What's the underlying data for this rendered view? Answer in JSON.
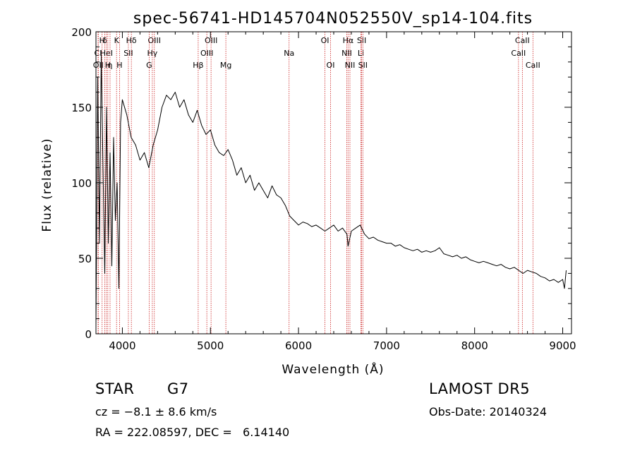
{
  "chart_data": {
    "type": "line",
    "title": "spec-56741-HD145704N052550V_sp14-104.fits",
    "xlabel": "Wavelength (Å)",
    "ylabel": "Flux (relative)",
    "xlim": [
      3700,
      9100
    ],
    "ylim": [
      0,
      200
    ],
    "xticks": [
      4000,
      5000,
      6000,
      7000,
      8000,
      9000
    ],
    "yticks": [
      0,
      50,
      100,
      150,
      200
    ],
    "line_color": "#000000",
    "marker_color": "#cc2222",
    "series": [
      {
        "x": [
          3700,
          3720,
          3740,
          3760,
          3780,
          3800,
          3820,
          3840,
          3860,
          3880,
          3900,
          3920,
          3940,
          3960,
          3980,
          4000,
          4050,
          4100,
          4150,
          4200,
          4250,
          4300,
          4350,
          4400,
          4450,
          4500,
          4550,
          4600,
          4650,
          4700,
          4750,
          4800,
          4850,
          4900,
          4950,
          5000,
          5050,
          5100,
          5150,
          5200,
          5250,
          5300,
          5350,
          5400,
          5450,
          5500,
          5550,
          5600,
          5650,
          5700,
          5750,
          5800,
          5850,
          5900,
          5950,
          6000,
          6050,
          6100,
          6150,
          6200,
          6250,
          6300,
          6350,
          6400,
          6450,
          6500,
          6550,
          6563,
          6600,
          6650,
          6700,
          6750,
          6800,
          6850,
          6900,
          6950,
          7000,
          7050,
          7100,
          7150,
          7200,
          7250,
          7300,
          7350,
          7400,
          7450,
          7500,
          7550,
          7600,
          7650,
          7700,
          7750,
          7800,
          7850,
          7900,
          7950,
          8000,
          8050,
          8100,
          8150,
          8200,
          8250,
          8300,
          8350,
          8400,
          8450,
          8500,
          8550,
          8600,
          8650,
          8700,
          8750,
          8800,
          8850,
          8900,
          8950,
          9000,
          9020,
          9040
        ],
        "y": [
          5,
          170,
          60,
          185,
          110,
          40,
          150,
          60,
          120,
          45,
          130,
          75,
          100,
          30,
          140,
          155,
          145,
          130,
          125,
          115,
          120,
          110,
          125,
          135,
          150,
          158,
          155,
          160,
          150,
          155,
          145,
          140,
          148,
          138,
          132,
          135,
          125,
          120,
          118,
          122,
          115,
          105,
          110,
          100,
          105,
          95,
          100,
          95,
          90,
          98,
          92,
          90,
          85,
          78,
          75,
          72,
          74,
          73,
          71,
          72,
          70,
          68,
          70,
          72,
          68,
          70,
          66,
          58,
          68,
          70,
          72,
          66,
          63,
          64,
          62,
          61,
          60,
          60,
          58,
          59,
          57,
          56,
          55,
          56,
          54,
          55,
          54,
          55,
          57,
          53,
          52,
          51,
          52,
          50,
          51,
          49,
          48,
          47,
          48,
          47,
          46,
          45,
          46,
          44,
          43,
          44,
          42,
          40,
          42,
          41,
          40,
          38,
          37,
          35,
          36,
          34,
          36,
          30,
          42
        ]
      }
    ],
    "lines": [
      {
        "name": "CI",
        "wave": 3724,
        "row": 1
      },
      {
        "name": "OII",
        "wave": 3727,
        "row": 2
      },
      {
        "name": "H",
        "wave": 3770,
        "row": 0
      },
      {
        "name": "δ",
        "wave": 3800,
        "row": 0
      },
      {
        "name": "HeI",
        "wave": 3819,
        "row": 1
      },
      {
        "name": "H",
        "wave": 3835,
        "row": 2
      },
      {
        "name": "K",
        "wave": 3934,
        "row": 0
      },
      {
        "name": "η",
        "wave": 3860,
        "row": 2
      },
      {
        "name": "H",
        "wave": 3968,
        "row": 2
      },
      {
        "name": "SII",
        "wave": 4068,
        "row": 1
      },
      {
        "name": "Hδ",
        "wave": 4102,
        "row": 0
      },
      {
        "name": "OIII",
        "wave": 4363,
        "row": 0
      },
      {
        "name": "Hγ",
        "wave": 4340,
        "row": 1
      },
      {
        "name": "G",
        "wave": 4304,
        "row": 2
      },
      {
        "name": "Hβ",
        "wave": 4861,
        "row": 2
      },
      {
        "name": "OIII",
        "wave": 5007,
        "row": 0
      },
      {
        "name": "OIII",
        "wave": 4959,
        "row": 1
      },
      {
        "name": "Mg",
        "wave": 5175,
        "row": 2
      },
      {
        "name": "Na",
        "wave": 5893,
        "row": 1
      },
      {
        "name": "OI",
        "wave": 6300,
        "row": 0
      },
      {
        "name": "OI",
        "wave": 6364,
        "row": 2
      },
      {
        "name": "Hα",
        "wave": 6563,
        "row": 0
      },
      {
        "name": "NII",
        "wave": 6548,
        "row": 1
      },
      {
        "name": "NII",
        "wave": 6584,
        "row": 2
      },
      {
        "name": "SII",
        "wave": 6717,
        "row": 0
      },
      {
        "name": "Li",
        "wave": 6708,
        "row": 1
      },
      {
        "name": "SII",
        "wave": 6731,
        "row": 2
      },
      {
        "name": "CaII",
        "wave": 8542,
        "row": 0
      },
      {
        "name": "CaII",
        "wave": 8498,
        "row": 1
      },
      {
        "name": "CaII",
        "wave": 8662,
        "row": 2
      }
    ]
  },
  "info": {
    "object_class": "STAR",
    "subclass": "G7",
    "survey": "LAMOST DR5",
    "redshift": "cz = −8.1 ± 8.6 km/s",
    "obs_date": "Obs-Date: 20140324",
    "coords": "RA = 222.08597, DEC =   6.14140"
  }
}
